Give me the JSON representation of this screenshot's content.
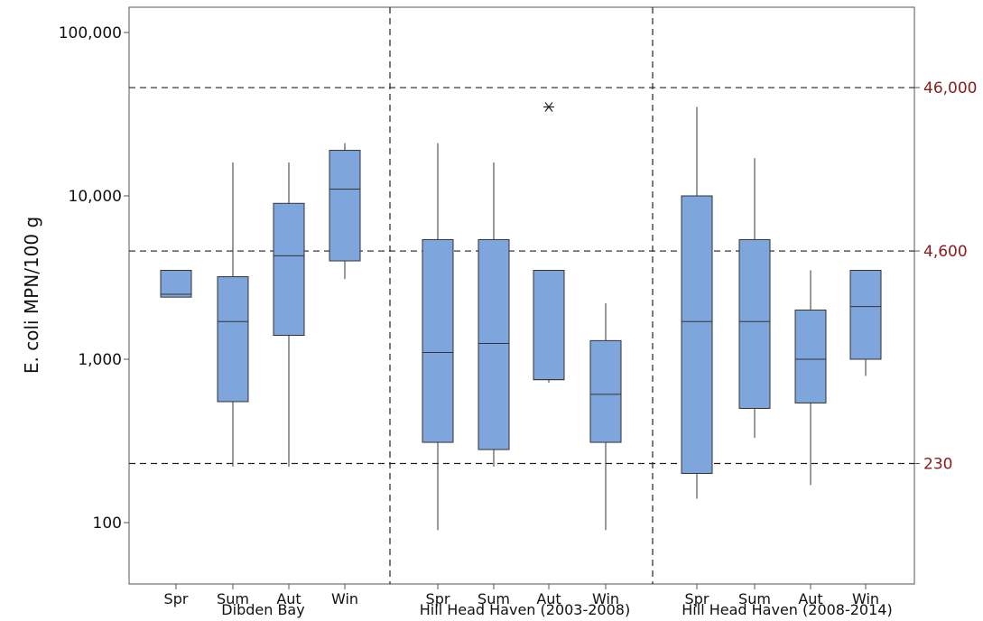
{
  "chart_data": {
    "type": "box",
    "ylabel": "E. coli MPN/100 g",
    "yscale": "log",
    "ylim": [
      60,
      140000
    ],
    "yticks": [
      {
        "value": 100,
        "label": "100"
      },
      {
        "value": 1000,
        "label": "1,000"
      },
      {
        "value": 10000,
        "label": "10,000"
      },
      {
        "value": 100000,
        "label": "100,000"
      }
    ],
    "reference_lines": [
      {
        "value": 46000,
        "label": "46,000"
      },
      {
        "value": 4600,
        "label": "4,600"
      },
      {
        "value": 230,
        "label": "230"
      }
    ],
    "reference_color": "#8b1a1a",
    "box_color": "#7ea6dc",
    "groups": [
      {
        "name": "Dibden Bay",
        "boxes": [
          {
            "category": "Spr",
            "whisker_low": 2400,
            "q1": 2400,
            "median": 2500,
            "q3": 3500,
            "whisker_high": 3500,
            "outliers": []
          },
          {
            "category": "Sum",
            "whisker_low": 220,
            "q1": 550,
            "median": 1700,
            "q3": 3200,
            "whisker_high": 16000,
            "outliers": []
          },
          {
            "category": "Aut",
            "whisker_low": 220,
            "q1": 1400,
            "median": 4300,
            "q3": 9000,
            "whisker_high": 16000,
            "outliers": []
          },
          {
            "category": "Win",
            "whisker_low": 3100,
            "q1": 4000,
            "median": 11000,
            "q3": 19000,
            "whisker_high": 21000,
            "outliers": []
          }
        ]
      },
      {
        "name": "Hill Head Haven (2003-2008)",
        "boxes": [
          {
            "category": "Spr",
            "whisker_low": 90,
            "q1": 310,
            "median": 1100,
            "q3": 5400,
            "whisker_high": 21000,
            "outliers": []
          },
          {
            "category": "Sum",
            "whisker_low": 220,
            "q1": 280,
            "median": 1250,
            "q3": 5400,
            "whisker_high": 16000,
            "outliers": []
          },
          {
            "category": "Aut",
            "whisker_low": 720,
            "q1": 750,
            "median": 750,
            "q3": 3500,
            "whisker_high": 3500,
            "outliers": [
              35000
            ]
          },
          {
            "category": "Win",
            "whisker_low": 90,
            "q1": 310,
            "median": 610,
            "q3": 1300,
            "whisker_high": 2200,
            "outliers": []
          }
        ]
      },
      {
        "name": "Hill Head Haven (2008-2014)",
        "boxes": [
          {
            "category": "Spr",
            "whisker_low": 140,
            "q1": 200,
            "median": 1700,
            "q3": 10000,
            "whisker_high": 35000,
            "outliers": []
          },
          {
            "category": "Sum",
            "whisker_low": 330,
            "q1": 500,
            "median": 1700,
            "q3": 5400,
            "whisker_high": 17000,
            "outliers": []
          },
          {
            "category": "Aut",
            "whisker_low": 170,
            "q1": 540,
            "median": 1000,
            "q3": 2000,
            "whisker_high": 3500,
            "outliers": []
          },
          {
            "category": "Win",
            "whisker_low": 790,
            "q1": 1000,
            "median": 2100,
            "q3": 3500,
            "whisker_high": 3500,
            "outliers": []
          }
        ]
      }
    ]
  }
}
